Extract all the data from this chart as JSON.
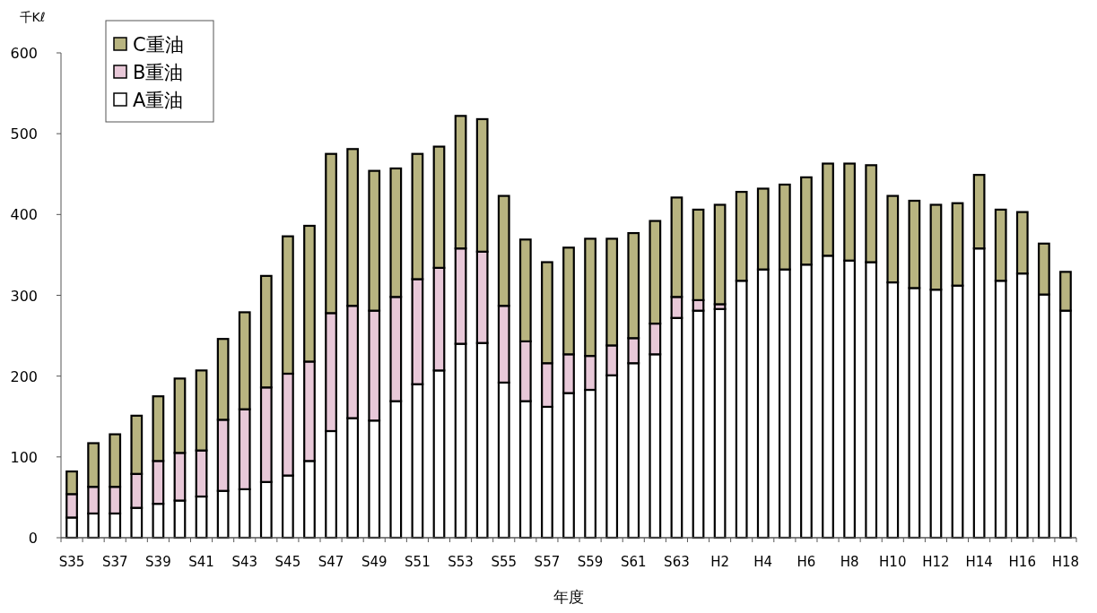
{
  "chart_data": {
    "type": "bar",
    "stacked": true,
    "xlabel": "年度",
    "ylabel": "千Kℓ",
    "categories": [
      "S35",
      null,
      "S37",
      null,
      "S39",
      null,
      "S41",
      null,
      "S43",
      null,
      "S45",
      null,
      "S47",
      null,
      "S49",
      null,
      "S51",
      null,
      "S53",
      null,
      "S55",
      null,
      "S57",
      null,
      "S59",
      null,
      "S61",
      null,
      "S63",
      null,
      "H2",
      null,
      "H4",
      null,
      "H6",
      null,
      "H8",
      null,
      "H10",
      null,
      "H12",
      null,
      "H14",
      null,
      "H16",
      null,
      "H18"
    ],
    "series": [
      {
        "name": "A重油",
        "color": "#ffffff",
        "values": [
          25,
          30,
          30,
          37,
          42,
          46,
          51,
          58,
          60,
          69,
          77,
          95,
          132,
          148,
          145,
          169,
          190,
          207,
          240,
          241,
          192,
          169,
          162,
          179,
          183,
          201,
          216,
          227,
          272,
          281,
          283,
          318,
          332,
          332,
          338,
          349,
          343,
          341,
          316,
          309,
          307,
          312,
          358,
          318,
          327,
          301,
          281
        ]
      },
      {
        "name": "B重油",
        "color": "#e8c8d8",
        "values": [
          29,
          33,
          33,
          42,
          53,
          59,
          57,
          88,
          99,
          117,
          126,
          123,
          146,
          139,
          136,
          129,
          130,
          127,
          118,
          113,
          95,
          74,
          54,
          48,
          42,
          37,
          31,
          38,
          26,
          13,
          6,
          null,
          0,
          0,
          0,
          0,
          0,
          0,
          0,
          0,
          0,
          0,
          0,
          0,
          0,
          0,
          0
        ]
      },
      {
        "name": "C重油",
        "color": "#b8b480",
        "values": [
          28,
          54,
          65,
          72,
          80,
          92,
          99,
          100,
          120,
          138,
          170,
          168,
          197,
          194,
          173,
          159,
          155,
          150,
          164,
          164,
          136,
          126,
          125,
          132,
          145,
          132,
          130,
          127,
          123,
          112,
          123,
          110,
          100,
          105,
          108,
          114,
          120,
          120,
          107,
          108,
          105,
          102,
          91,
          88,
          76,
          63,
          48
        ]
      }
    ],
    "ylim": [
      0,
      600
    ],
    "yticks": [
      0,
      100,
      200,
      300,
      400,
      500,
      600
    ],
    "legend": "top left",
    "grid": false
  }
}
